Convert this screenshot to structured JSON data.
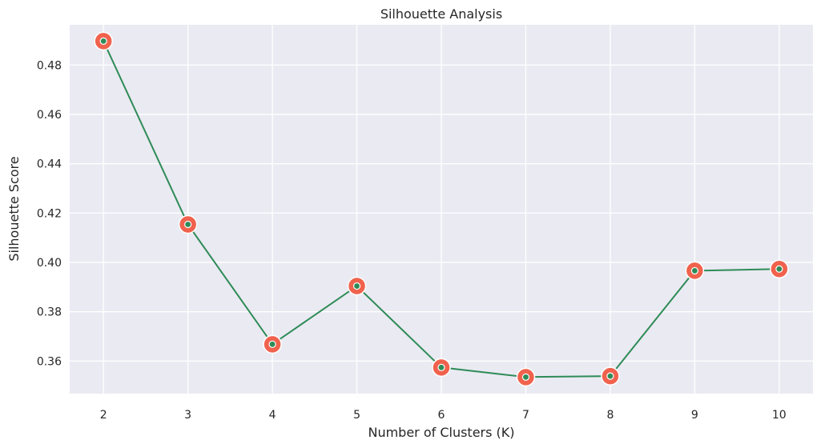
{
  "chart_data": {
    "type": "line",
    "title": "Silhouette Analysis",
    "xlabel": "Number of Clusters (K)",
    "ylabel": "Silhouette Score",
    "x": [
      2,
      3,
      4,
      5,
      6,
      7,
      8,
      9,
      10
    ],
    "series": [
      {
        "values": [
          0.4897,
          0.4154,
          0.3668,
          0.3904,
          0.3574,
          0.3535,
          0.3539,
          0.3966,
          0.3973
        ]
      }
    ],
    "xticks": [
      "2",
      "3",
      "4",
      "5",
      "6",
      "7",
      "8",
      "9",
      "10"
    ],
    "yticks": [
      "0.36",
      "0.38",
      "0.40",
      "0.42",
      "0.44",
      "0.46",
      "0.48"
    ],
    "ytick_values": [
      0.36,
      0.38,
      0.4,
      0.42,
      0.44,
      0.46,
      0.48
    ],
    "xlim": [
      1.6,
      10.4
    ],
    "ylim": [
      0.3468,
      0.4963
    ],
    "grid": true,
    "colors": {
      "background": "#eaeaf2",
      "grid": "#ffffff",
      "line": "#2e8b57",
      "marker_outer": "#f0624d",
      "marker_inner": "#2e8b57",
      "marker_edge": "#ffffff"
    }
  }
}
